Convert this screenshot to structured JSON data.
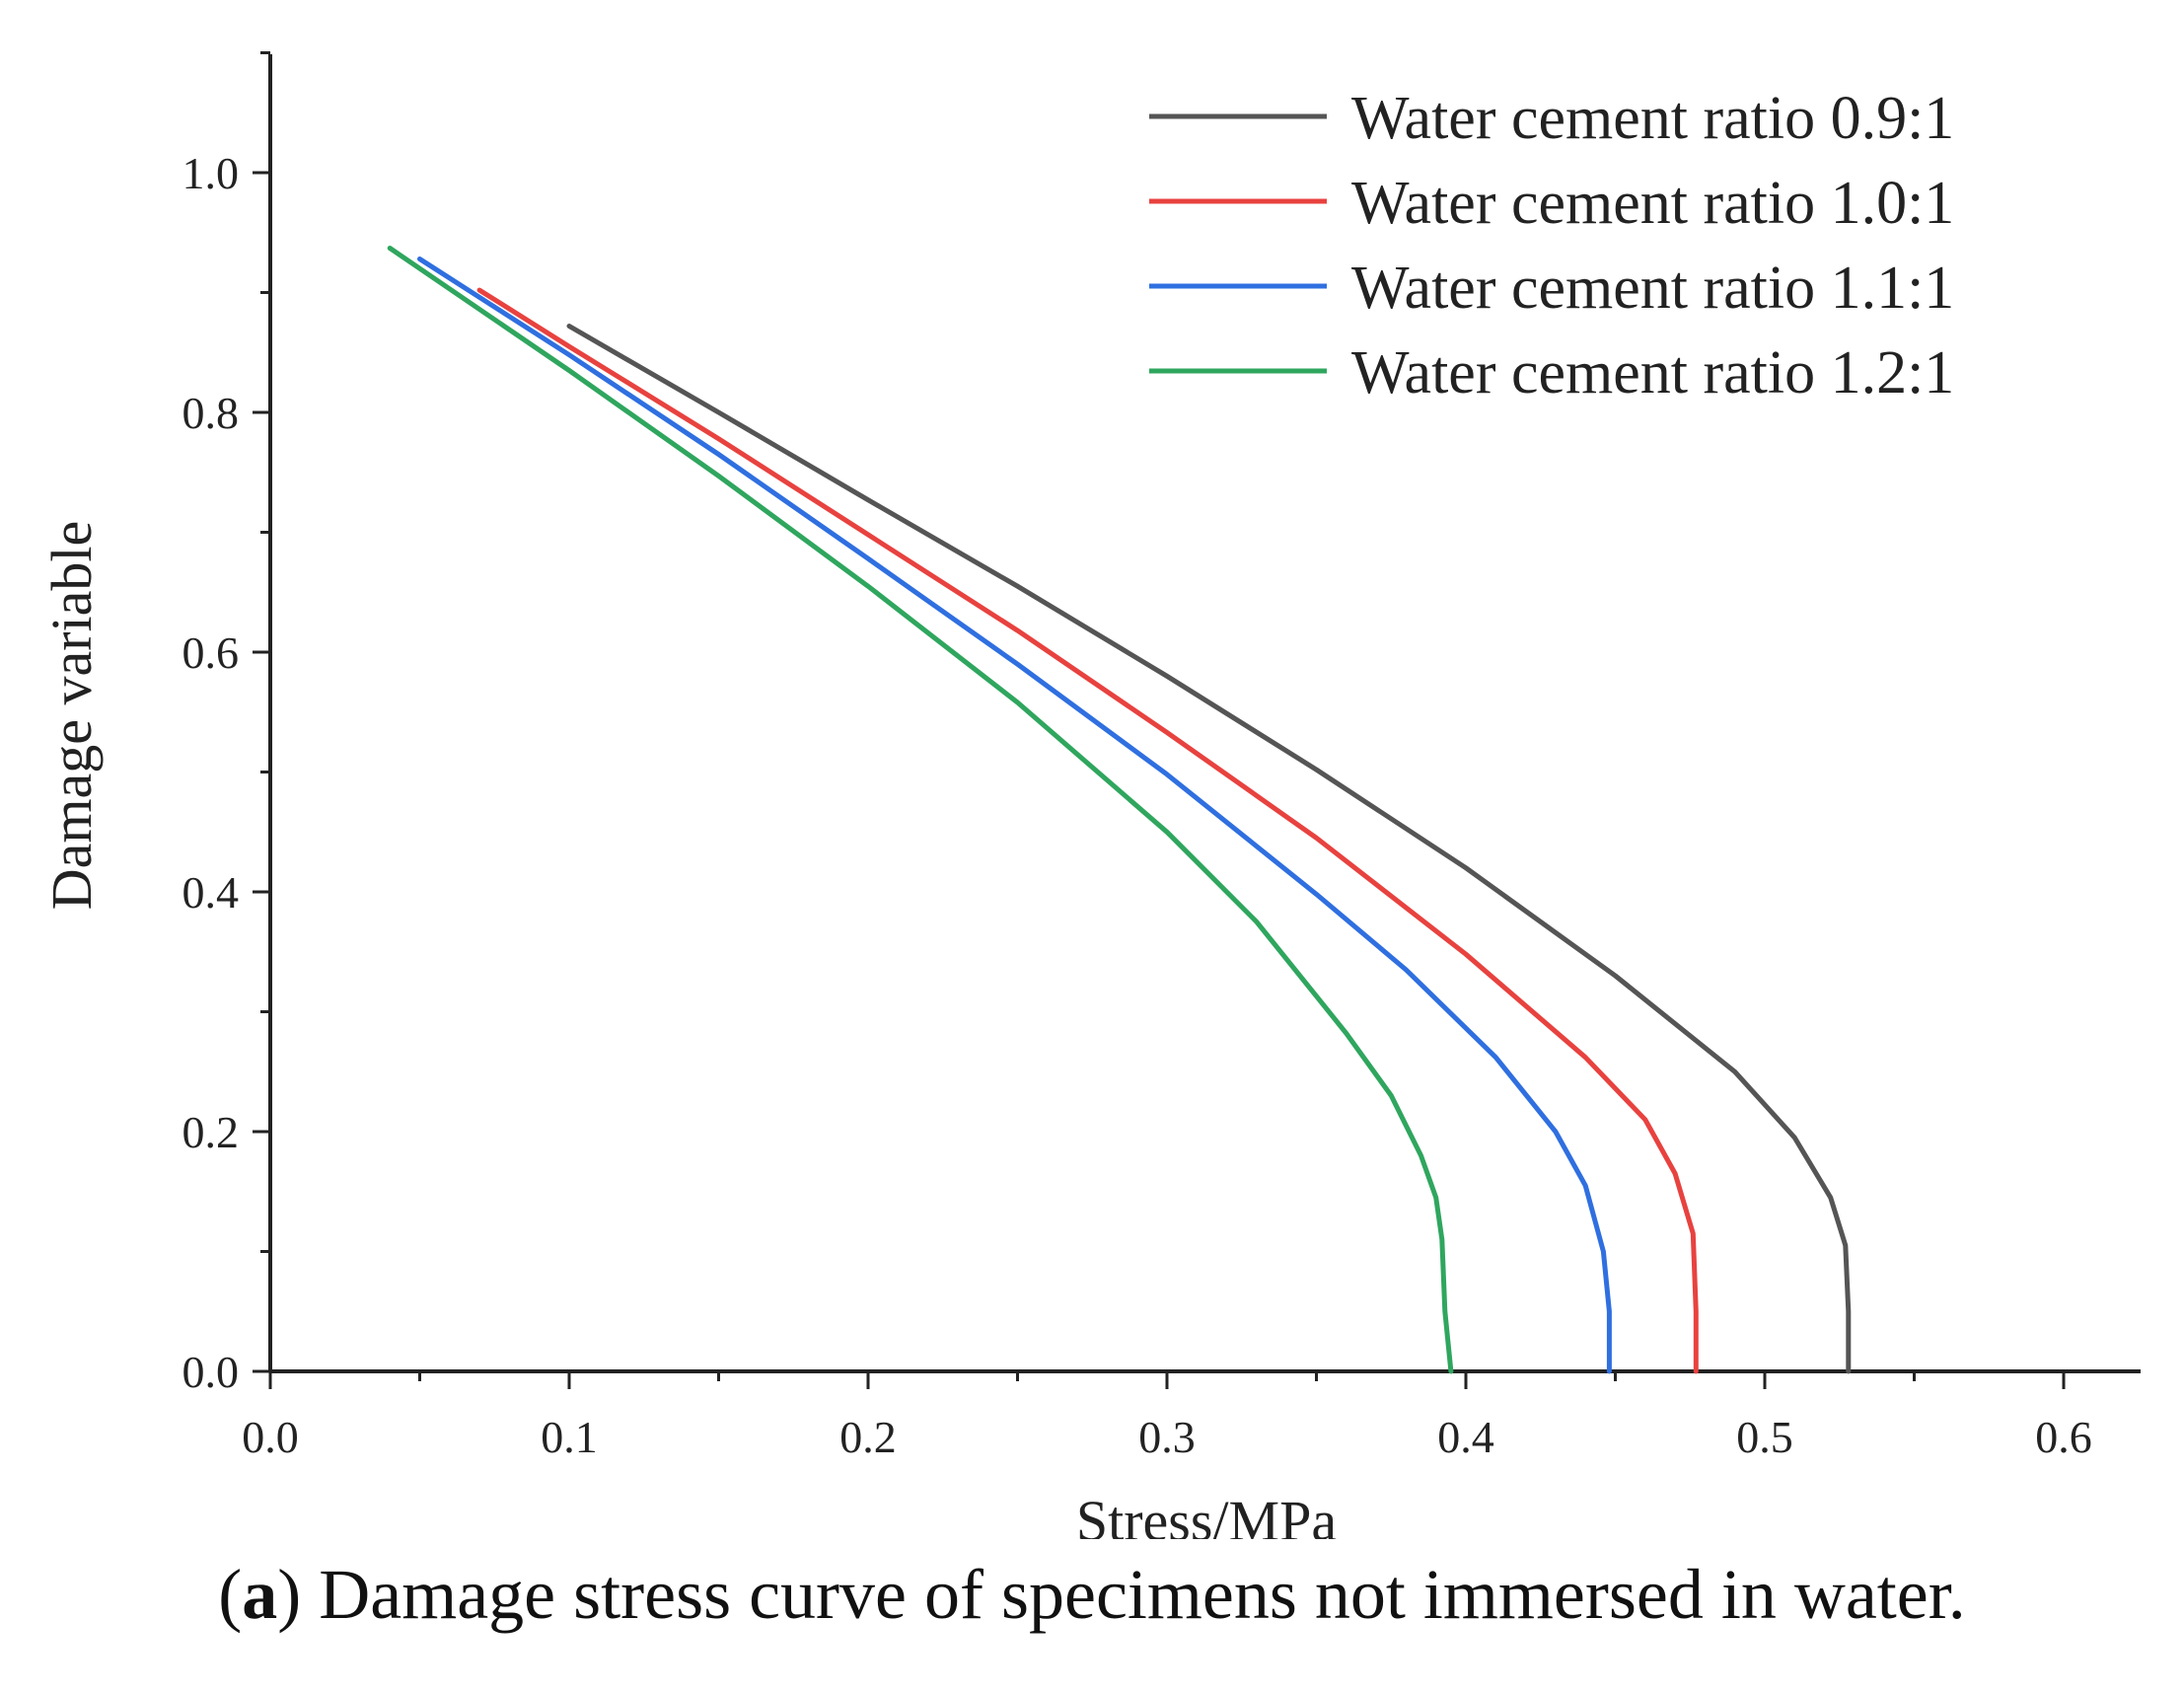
{
  "caption": {
    "letter": "a",
    "open": "(",
    "close": ")",
    "text": " Damage stress curve of specimens not immersed in water."
  },
  "chart_data": {
    "type": "line",
    "xlabel": "Stress/MPa",
    "ylabel": "Damage variable",
    "xlim": [
      0,
      0.65
    ],
    "ylim": [
      0,
      1.1
    ],
    "xticks": [
      0.0,
      0.1,
      0.2,
      0.3,
      0.4,
      0.5,
      0.6
    ],
    "yticks": [
      0.0,
      0.2,
      0.4,
      0.6,
      0.8,
      1.0
    ],
    "xtick_labels": [
      "0.0",
      "0.1",
      "0.2",
      "0.3",
      "0.4",
      "0.5",
      "0.6"
    ],
    "ytick_labels": [
      "0.0",
      "0.2",
      "0.4",
      "0.6",
      "0.8",
      "1.0"
    ],
    "grid": false,
    "legend": "top-right",
    "series": [
      {
        "name": "Water cement ratio 0.9:1",
        "color": "#555555",
        "x": [
          0.1,
          0.15,
          0.2,
          0.25,
          0.3,
          0.35,
          0.4,
          0.45,
          0.49,
          0.51,
          0.522,
          0.527,
          0.528,
          0.528
        ],
        "y": [
          0.872,
          0.8,
          0.727,
          0.655,
          0.58,
          0.502,
          0.42,
          0.33,
          0.25,
          0.195,
          0.145,
          0.105,
          0.05,
          0.0
        ]
      },
      {
        "name": "Water cement ratio 1.0:1",
        "color": "#e8423f",
        "x": [
          0.07,
          0.1,
          0.15,
          0.2,
          0.25,
          0.3,
          0.35,
          0.4,
          0.44,
          0.46,
          0.47,
          0.476,
          0.477,
          0.477
        ],
        "y": [
          0.902,
          0.855,
          0.778,
          0.698,
          0.618,
          0.533,
          0.445,
          0.348,
          0.262,
          0.21,
          0.165,
          0.115,
          0.05,
          0.0
        ]
      },
      {
        "name": "Water cement ratio 1.1:1",
        "color": "#2f6fe0",
        "x": [
          0.05,
          0.1,
          0.15,
          0.2,
          0.25,
          0.3,
          0.35,
          0.38,
          0.41,
          0.43,
          0.44,
          0.446,
          0.448,
          0.448
        ],
        "y": [
          0.928,
          0.848,
          0.765,
          0.678,
          0.59,
          0.498,
          0.398,
          0.335,
          0.262,
          0.2,
          0.155,
          0.1,
          0.05,
          0.0
        ]
      },
      {
        "name": "Water cement ratio 1.2:1",
        "color": "#2fa65e",
        "x": [
          0.04,
          0.1,
          0.15,
          0.2,
          0.25,
          0.3,
          0.33,
          0.36,
          0.375,
          0.385,
          0.39,
          0.392,
          0.393,
          0.395
        ],
        "y": [
          0.937,
          0.835,
          0.747,
          0.655,
          0.558,
          0.45,
          0.375,
          0.282,
          0.23,
          0.18,
          0.145,
          0.11,
          0.05,
          0.0
        ]
      }
    ]
  }
}
